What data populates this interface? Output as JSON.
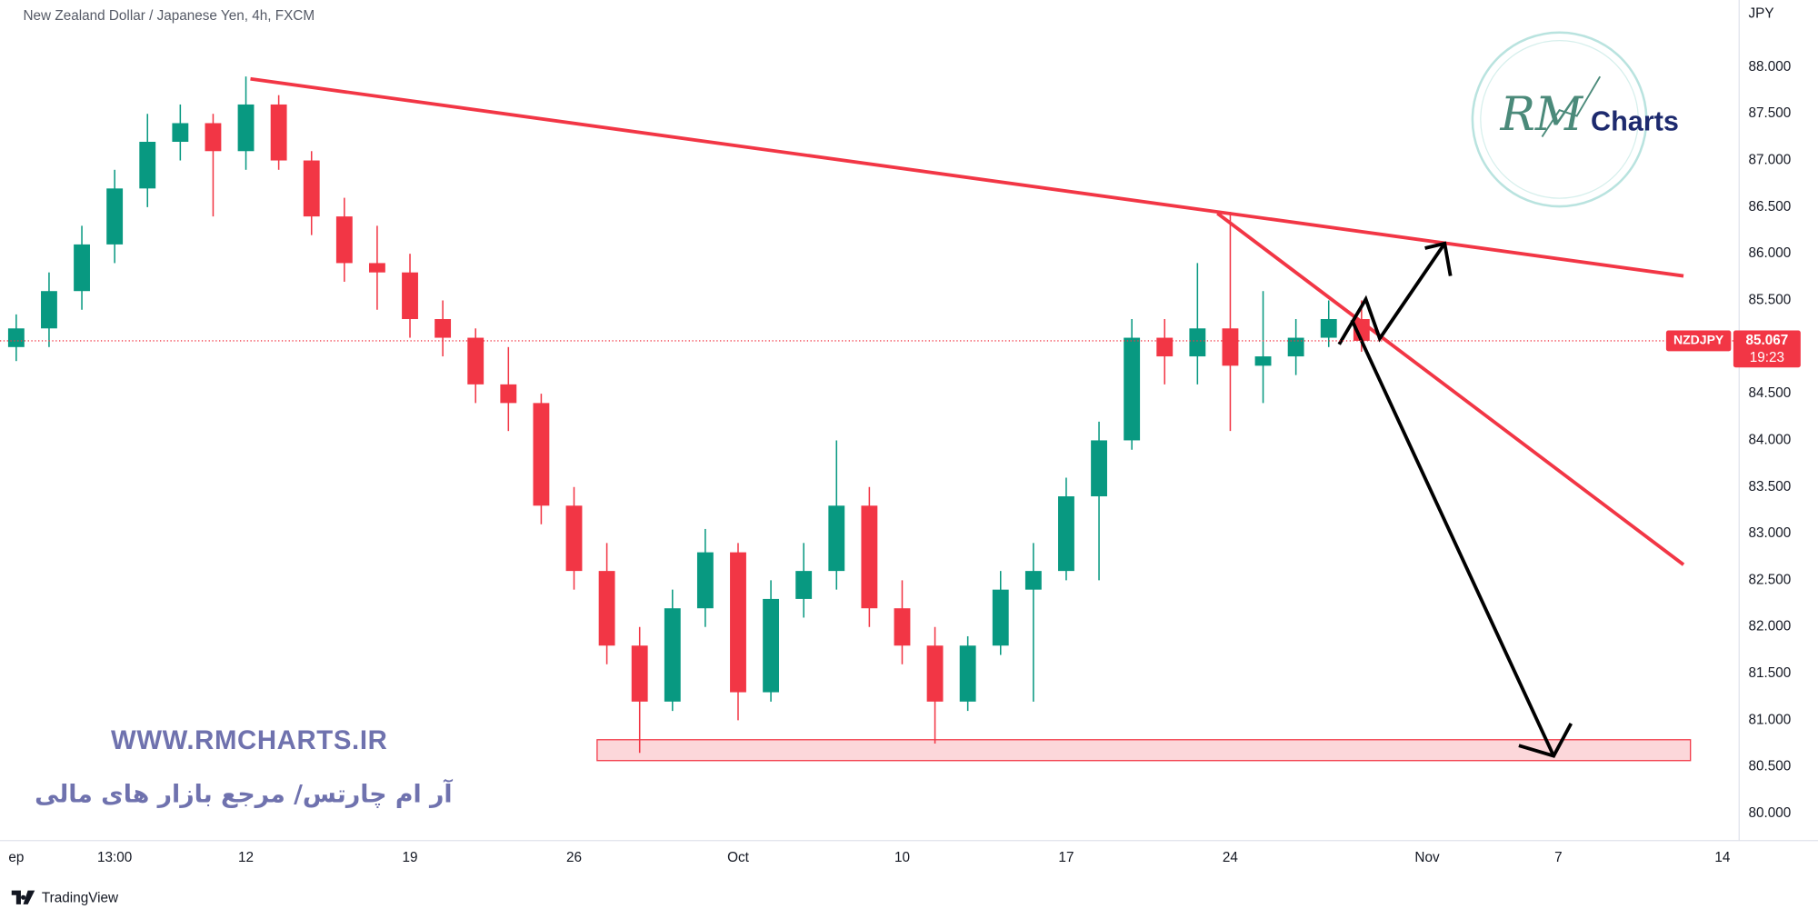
{
  "chart_data": {
    "type": "candlestick",
    "title": "New Zealand Dollar / Japanese Yen, 4h, FXCM",
    "y_unit": "JPY",
    "categories": [
      "ep",
      null,
      null,
      "13:00",
      null,
      null,
      null,
      "12",
      null,
      null,
      null,
      null,
      "19",
      null,
      null,
      null,
      null,
      "26",
      null,
      null,
      null,
      null,
      "Oct",
      null,
      null,
      null,
      null,
      "10",
      null,
      null,
      null,
      null,
      "17",
      null,
      null,
      null,
      null,
      "24",
      null,
      null,
      null,
      null,
      null,
      "Nov",
      null,
      null,
      null,
      "7",
      null,
      null,
      null,
      null,
      "14"
    ],
    "open": [
      85.0,
      85.2,
      85.6,
      86.1,
      86.7,
      87.2,
      87.4,
      87.1,
      87.6,
      87.0,
      86.4,
      85.9,
      85.8,
      85.3,
      85.1,
      84.6,
      84.4,
      83.3,
      82.6,
      81.8,
      81.2,
      82.2,
      82.8,
      81.3,
      82.3,
      82.6,
      83.3,
      82.2,
      81.8,
      81.2,
      81.8,
      82.4,
      82.6,
      83.4,
      84.0,
      85.1,
      84.9,
      85.2,
      84.8,
      84.9,
      85.1,
      85.3,
      null,
      null,
      null,
      null,
      null,
      null,
      null,
      null,
      null,
      null,
      null
    ],
    "high": [
      85.35,
      85.8,
      86.3,
      86.9,
      87.5,
      87.6,
      87.5,
      87.9,
      87.7,
      87.1,
      86.6,
      86.3,
      86.0,
      85.5,
      85.2,
      85.0,
      84.5,
      83.5,
      82.9,
      82.0,
      82.4,
      83.05,
      82.9,
      82.5,
      82.9,
      84.0,
      83.5,
      82.5,
      82.0,
      81.9,
      82.6,
      82.9,
      83.6,
      84.2,
      85.3,
      85.3,
      85.9,
      86.45,
      85.6,
      85.3,
      85.5,
      85.5,
      null,
      null,
      null,
      null,
      null,
      null,
      null,
      null,
      null,
      null,
      null
    ],
    "low": [
      84.85,
      85.0,
      85.4,
      85.9,
      86.5,
      87.0,
      86.4,
      86.9,
      86.9,
      86.2,
      85.7,
      85.4,
      85.1,
      84.9,
      84.4,
      84.1,
      83.1,
      82.4,
      81.6,
      80.65,
      81.1,
      82.0,
      81.0,
      81.2,
      82.1,
      82.4,
      82.0,
      81.6,
      80.75,
      81.1,
      81.7,
      81.2,
      82.5,
      82.5,
      83.9,
      84.6,
      84.6,
      84.1,
      84.4,
      84.7,
      85.0,
      84.95,
      null,
      null,
      null,
      null,
      null,
      null,
      null,
      null,
      null,
      null,
      null
    ],
    "close": [
      85.2,
      85.6,
      86.1,
      86.7,
      87.2,
      87.4,
      87.1,
      87.6,
      87.0,
      86.4,
      85.9,
      85.8,
      85.3,
      85.1,
      84.6,
      84.4,
      83.3,
      82.6,
      81.8,
      81.2,
      82.2,
      82.8,
      81.3,
      82.3,
      82.6,
      83.3,
      82.2,
      81.8,
      81.2,
      81.8,
      82.4,
      82.6,
      83.4,
      84.0,
      85.1,
      84.9,
      85.2,
      84.8,
      84.9,
      85.1,
      85.3,
      85.067,
      null,
      null,
      null,
      null,
      null,
      null,
      null,
      null,
      null,
      null,
      null
    ],
    "up_color": "#089981",
    "down_color": "#f23645",
    "ylim": [
      79.71,
      88.72
    ],
    "yticks": [
      {
        "value": 80,
        "label": "80.000"
      },
      {
        "value": 80.5,
        "label": "80.500"
      },
      {
        "value": 81,
        "label": "81.000"
      },
      {
        "value": 81.5,
        "label": "81.500"
      },
      {
        "value": 82,
        "label": "82.000"
      },
      {
        "value": 82.5,
        "label": "82.500"
      },
      {
        "value": 83,
        "label": "83.000"
      },
      {
        "value": 83.5,
        "label": "83.500"
      },
      {
        "value": 84,
        "label": "84.000"
      },
      {
        "value": 84.5,
        "label": "84.500"
      },
      {
        "value": 85,
        "label": "85.000"
      },
      {
        "value": 85.5,
        "label": "85.500"
      },
      {
        "value": 86,
        "label": "86.000"
      },
      {
        "value": 86.5,
        "label": "86.500"
      },
      {
        "value": 87,
        "label": "87.000"
      },
      {
        "value": 87.5,
        "label": "87.500"
      },
      {
        "value": 88,
        "label": "88.000"
      }
    ],
    "last_price": {
      "symbol": "NZDJPY",
      "value": 85.067,
      "countdown": "19:23"
    }
  },
  "logo": {
    "script": "RM",
    "text": "Charts"
  },
  "watermark": {
    "url": "WWW.RMCHARTS.IR",
    "persian": "آر ام چارتس/ مرجع بازار های مالی"
  },
  "footer": {
    "brand": "TradingView"
  }
}
